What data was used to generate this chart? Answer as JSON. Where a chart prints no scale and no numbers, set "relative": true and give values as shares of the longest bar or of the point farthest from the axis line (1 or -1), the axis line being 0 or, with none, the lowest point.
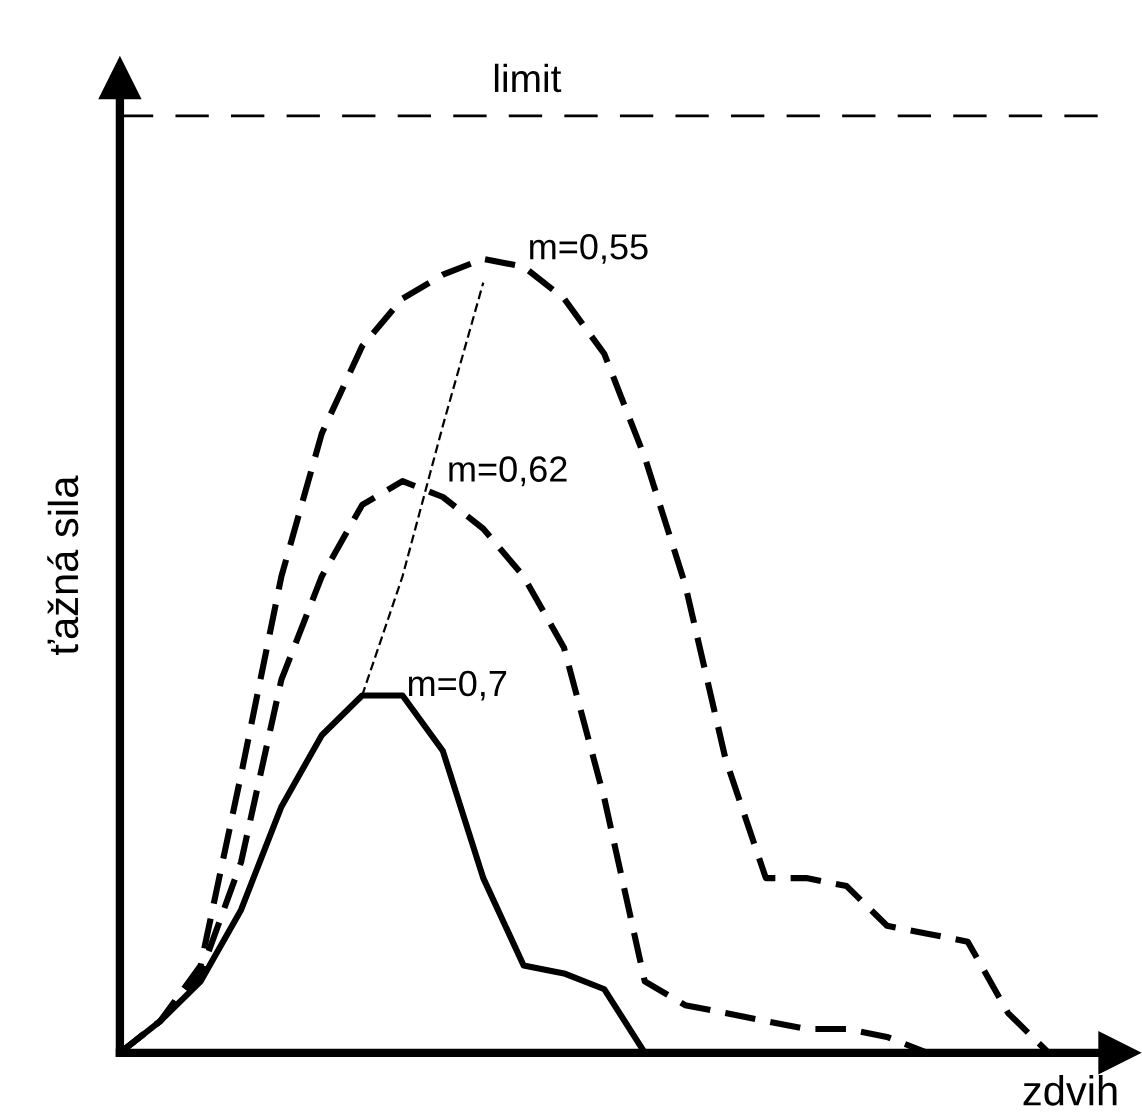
{
  "chart_data": {
    "type": "line",
    "relative": true,
    "xlabel": "zdvih",
    "ylabel": "ťažná sila",
    "categories": [
      null,
      null,
      null,
      null,
      null,
      null,
      null,
      null,
      null,
      null,
      null,
      null,
      null,
      null,
      null,
      null,
      null,
      null,
      null,
      null,
      null,
      null,
      null,
      null
    ],
    "series": [
      {
        "name": "m=0,55",
        "color": "#000000",
        "line_style": "dashed",
        "values": [
          0,
          0.04,
          0.11,
          0.35,
          0.6,
          0.78,
          0.89,
          0.95,
          0.98,
          1.0,
          0.99,
          0.95,
          0.88,
          0.75,
          0.59,
          0.37,
          0.22,
          0.22,
          0.21,
          0.16,
          0.15,
          0.14,
          0.05,
          0
        ]
      },
      {
        "name": "m=0,62",
        "color": "#000000",
        "line_style": "dashed",
        "values": [
          0,
          0.04,
          0.1,
          0.24,
          0.47,
          0.6,
          0.69,
          0.72,
          0.7,
          0.66,
          0.6,
          0.51,
          0.32,
          0.09,
          0.06,
          0.05,
          0.04,
          0.03,
          0.03,
          0.02,
          0,
          null,
          null,
          null
        ]
      },
      {
        "name": "m=0,7",
        "color": "#000000",
        "line_style": "solid",
        "values": [
          0,
          0.04,
          0.09,
          0.18,
          0.31,
          0.4,
          0.45,
          0.45,
          0.38,
          0.22,
          0.11,
          0.1,
          0.08,
          0,
          null,
          null,
          null,
          null,
          null,
          null,
          null,
          null,
          null,
          null
        ]
      },
      {
        "color": "#000000",
        "line_style": "dashed",
        "values": [
          null,
          null,
          null,
          null,
          null,
          null,
          0.45,
          0.6,
          0.79,
          0.97,
          null,
          null,
          null,
          null,
          null,
          null,
          null,
          null,
          null,
          null,
          null,
          null,
          null,
          null
        ]
      }
    ],
    "ref_lines": [
      {
        "axis": "y",
        "value": 1.18,
        "label": "limit",
        "color": "#000000",
        "line_style": "dashed"
      }
    ],
    "legend": false
  }
}
